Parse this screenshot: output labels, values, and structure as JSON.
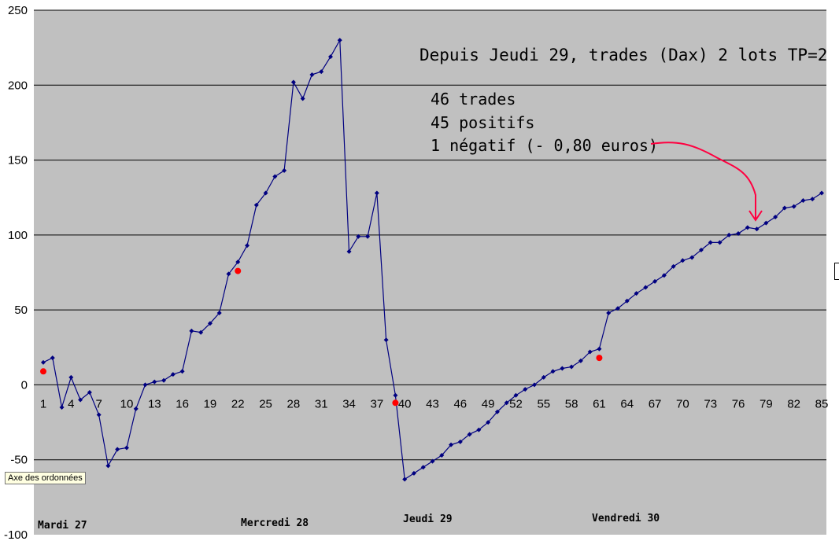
{
  "chart_data": {
    "type": "line",
    "title": "",
    "xlabel": "",
    "ylabel": "",
    "ylim": [
      -100,
      250
    ],
    "yticks": [
      -100,
      -50,
      0,
      50,
      100,
      150,
      200,
      250
    ],
    "xlim": [
      1,
      85
    ],
    "xtick_labels": [
      "1",
      "4",
      "7",
      "10",
      "13",
      "16",
      "19",
      "22",
      "25",
      "28",
      "31",
      "34",
      "37",
      "40",
      "43",
      "46",
      "49",
      "52",
      "55",
      "58",
      "61",
      "64",
      "67",
      "70",
      "73",
      "76",
      "79",
      "82",
      "85"
    ],
    "grid": "horizontal",
    "background": "#c0c0c0",
    "series": [
      {
        "color": "#000080",
        "marker": "diamond",
        "x": [
          1,
          2,
          3,
          4,
          5,
          6,
          7,
          8,
          9,
          10,
          11,
          12,
          13,
          14,
          15,
          16,
          17,
          18,
          19,
          20,
          21,
          22,
          23,
          24,
          25,
          26,
          27,
          28,
          29,
          30,
          31,
          32,
          33,
          34,
          35,
          36,
          37,
          38,
          39,
          40,
          41,
          42,
          43,
          44,
          45,
          46,
          47,
          48,
          49,
          50,
          51,
          52,
          53,
          54,
          55,
          56,
          57,
          58,
          59,
          60,
          61,
          62,
          63,
          64,
          65,
          66,
          67,
          68,
          69,
          70,
          71,
          72,
          73,
          74,
          75,
          76,
          77,
          78,
          79,
          80,
          81,
          82,
          83,
          84,
          85
        ],
        "values": [
          15,
          18,
          -15,
          5,
          -10,
          -5,
          -20,
          -54,
          -43,
          -42,
          -16,
          0,
          2,
          3,
          7,
          9,
          36,
          35,
          41,
          48,
          74,
          82,
          93,
          120,
          128,
          139,
          143,
          202,
          191,
          207,
          209,
          219,
          230,
          89,
          99,
          99,
          128,
          30,
          -7,
          -63,
          -59,
          -55,
          -51,
          -47,
          -40,
          -38,
          -33,
          -30,
          -25,
          -18,
          -12,
          -7,
          -3,
          0,
          5,
          9,
          11,
          12,
          16,
          22,
          24,
          48,
          51,
          56,
          61,
          65,
          69,
          73,
          79,
          83,
          85,
          90,
          95,
          95,
          100,
          101,
          105,
          104,
          108,
          112,
          118,
          119,
          123,
          124,
          128
        ]
      }
    ],
    "red_markers": [
      {
        "x": 1,
        "y": 9
      },
      {
        "x": 22,
        "y": 76
      },
      {
        "x": 39,
        "y": -12
      },
      {
        "x": 61,
        "y": 18
      }
    ],
    "annotations": {
      "title": "Depuis Jeudi 29, trades (Dax) 2 lots TP=2",
      "lines": [
        "46 trades",
        "45 positifs",
        "1 négatif (- 0,80 euros)"
      ],
      "arrow_color": "#ff0040"
    },
    "day_labels": [
      "Mardi 27",
      "Mercredi 28",
      "Jeudi 29",
      "Vendredi 30"
    ]
  },
  "tooltip": {
    "text": "Axe des ordonnées"
  }
}
